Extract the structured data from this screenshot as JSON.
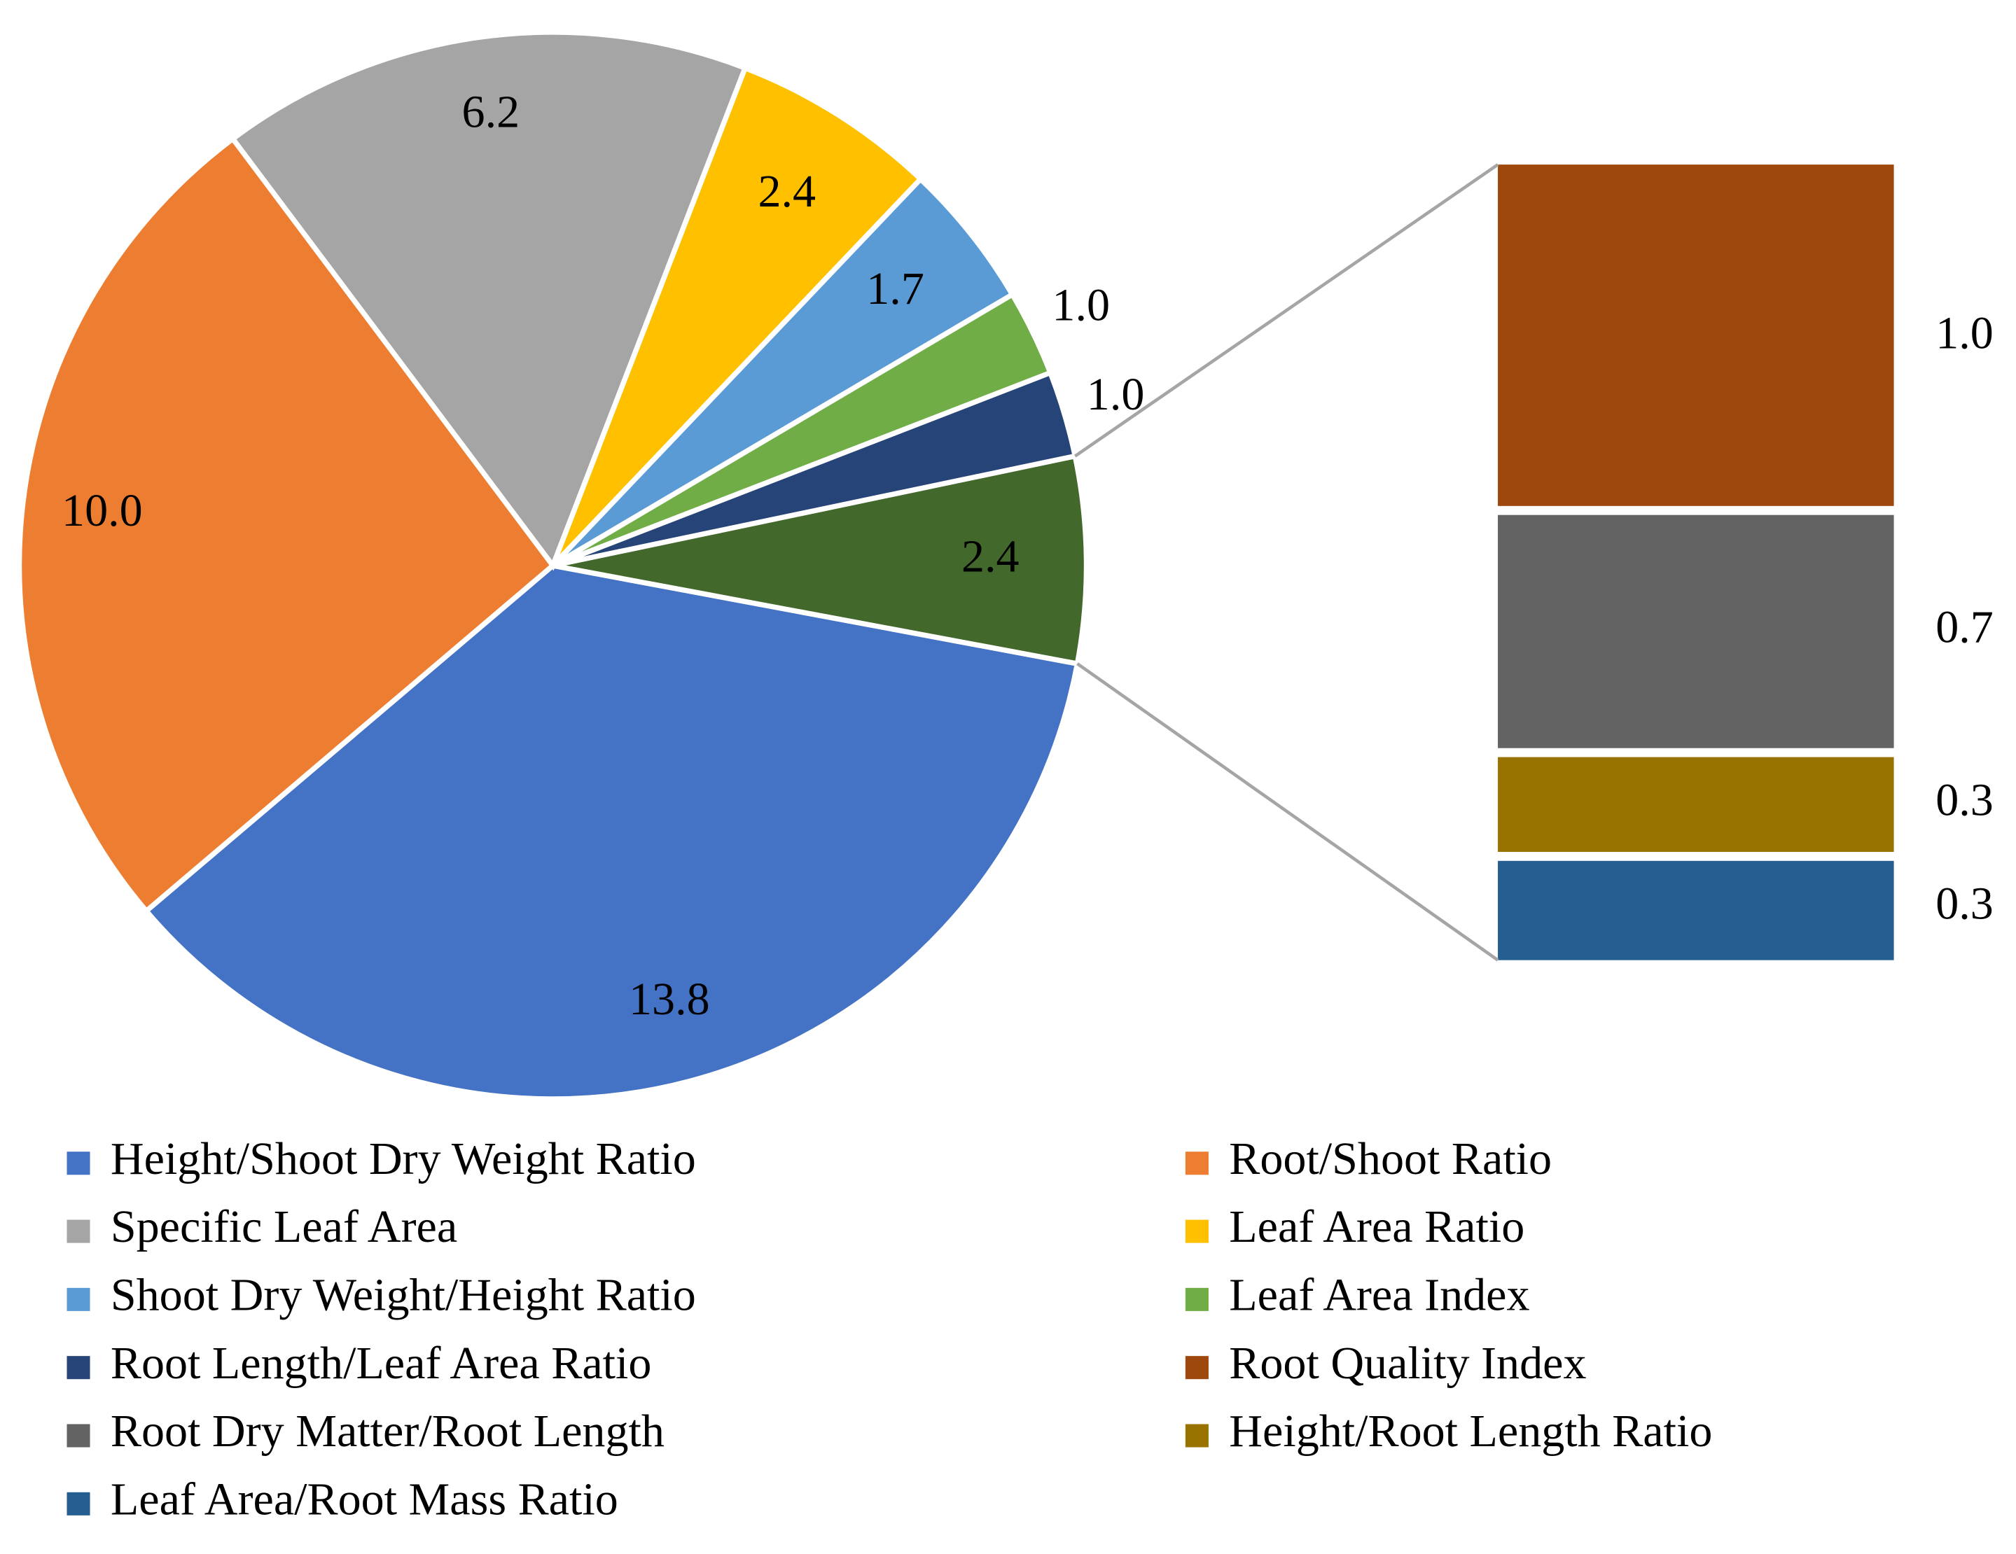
{
  "chart_data": {
    "type": "pie",
    "categories": [
      "Height/Shoot Dry Weight Ratio",
      "Root/Shoot Ratio",
      "Specific Leaf Area",
      "Leaf Area Ratio",
      "Shoot Dry Weight/Height Ratio",
      "Leaf Area Index",
      "Root Length/Leaf Area Ratio"
    ],
    "values": [
      13.8,
      10.0,
      6.2,
      2.4,
      1.7,
      1.0,
      1.0
    ],
    "value_labels": [
      "13.8",
      "10.0",
      "6.2",
      "2.4",
      "1.7",
      "1.0",
      "1.0"
    ],
    "colors": [
      "#4472c4",
      "#ed7d31",
      "#a5a5a5",
      "#ffc000",
      "#5b9bd5",
      "#70ad47",
      "#264478"
    ],
    "other": {
      "value": 2.4,
      "color": "#43682b"
    },
    "bar": {
      "categories": [
        "Root Quality Index",
        "Root Dry Matter/Root Length",
        "Height/Root Length Ratio",
        "Leaf Area/Root Mass Ratio"
      ],
      "values": [
        1.0,
        0.7,
        0.3,
        0.3
      ],
      "value_labels": [
        "1.0",
        "0.7",
        "0.3",
        "0.3"
      ],
      "colors": [
        "#9e480e",
        "#636363",
        "#997300",
        "#255e91"
      ]
    }
  }
}
